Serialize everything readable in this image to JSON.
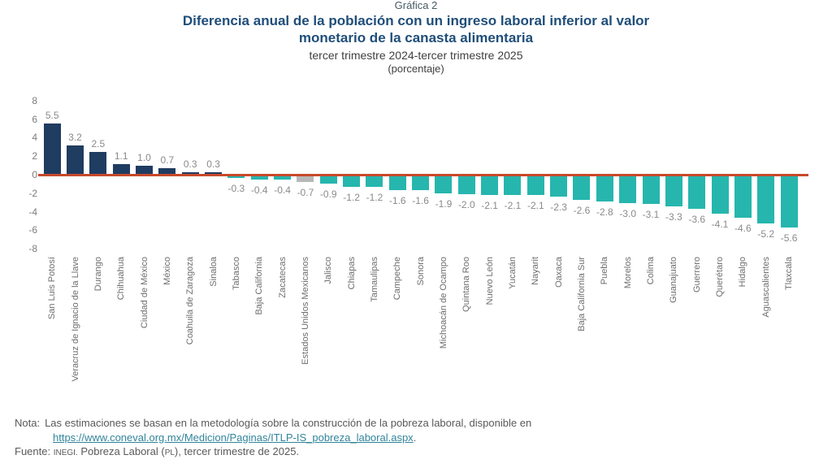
{
  "header": {
    "kicker": "Gráfica 2",
    "title_line1": "Diferencia anual de la población con un ingreso laboral inferior al valor",
    "title_line2": "monetario de la canasta alimentaria",
    "subtitle": "tercer trimestre 2024-tercer trimestre 2025",
    "unit": "(porcentaje)"
  },
  "chart_data": {
    "type": "bar",
    "title": "Diferencia anual de la población con un ingreso laboral inferior al valor monetario de la canasta alimentaria",
    "subtitle": "tercer trimestre 2024-tercer trimestre 2025",
    "unit": "porcentaje",
    "ylim": [
      -8,
      8
    ],
    "yticks": [
      8,
      6,
      4,
      2,
      0,
      -2,
      -4,
      -6,
      -8
    ],
    "grid": false,
    "legend": "none",
    "zero_line_color": "#C7492B",
    "colors": {
      "positive": "#1F3C61",
      "negative": "#26B6AE",
      "national": "#B8B8B8",
      "value_label": "#8A8A8A"
    },
    "highlight_category": "Estados Unidos Mexicanos",
    "categories": [
      "San Luis Potosí",
      "Veracruz de Ignacio de la Llave",
      "Durango",
      "Chihuahua",
      "Ciudad de México",
      "México",
      "Coahuila de Zaragoza",
      "Sinaloa",
      "Tabasco",
      "Baja California",
      "Zacatecas",
      "Estados Unidos Mexicanos",
      "Jalisco",
      "Chiapas",
      "Tamaulipas",
      "Campeche",
      "Sonora",
      "Michoacán de Ocampo",
      "Quintana Roo",
      "Nuevo León",
      "Yucatán",
      "Nayarit",
      "Oaxaca",
      "Baja California Sur",
      "Puebla",
      "Morelos",
      "Colima",
      "Guanajuato",
      "Guerrero",
      "Querétaro",
      "Hidalgo",
      "Aguascalientes",
      "Tlaxcala"
    ],
    "values": [
      5.5,
      3.2,
      2.5,
      1.1,
      1.0,
      0.7,
      0.3,
      0.3,
      -0.3,
      -0.4,
      -0.4,
      -0.7,
      -0.9,
      -1.2,
      -1.2,
      -1.6,
      -1.6,
      -1.9,
      -2.0,
      -2.1,
      -2.1,
      -2.1,
      -2.3,
      -2.6,
      -2.8,
      -3.0,
      -3.1,
      -3.3,
      -3.6,
      -4.1,
      -4.6,
      -5.2,
      -5.6
    ]
  },
  "footer": {
    "nota_label": "Nota:",
    "nota_text": "Las estimaciones se basan en la metodología sobre la construcción de la pobreza laboral, disponible en",
    "link": "https://www.coneval.org.mx/Medicion/Paginas/ITLP-IS_pobreza_laboral.aspx",
    "link_suffix": ".",
    "fuente_label": "Fuente:",
    "fuente_inegi": "INEGI.",
    "fuente_mid": " Pobreza Laboral (",
    "fuente_pl": "PL",
    "fuente_end": "), tercer trimestre de 2025."
  }
}
